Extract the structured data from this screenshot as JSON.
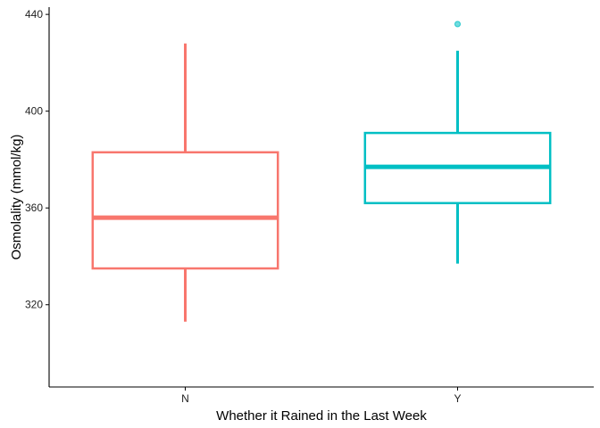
{
  "chart_data": {
    "type": "boxplot",
    "title": "",
    "xlabel": "Whether it Rained in the Last Week",
    "ylabel": "Osmolality (mmol/kg)",
    "categories": [
      "N",
      "Y"
    ],
    "ylim": [
      286,
      443
    ],
    "yticks": [
      320,
      360,
      400,
      440
    ],
    "grid": false,
    "legend": "none",
    "boxes": [
      {
        "category": "N",
        "color": "#F8766D",
        "min": 313,
        "q1": 335,
        "median": 356,
        "q3": 383,
        "max": 428,
        "outliers": []
      },
      {
        "category": "Y",
        "color": "#00BFC4",
        "min": 337,
        "q1": 362,
        "median": 377,
        "q3": 391,
        "max": 425,
        "outliers": [
          436
        ]
      }
    ]
  }
}
